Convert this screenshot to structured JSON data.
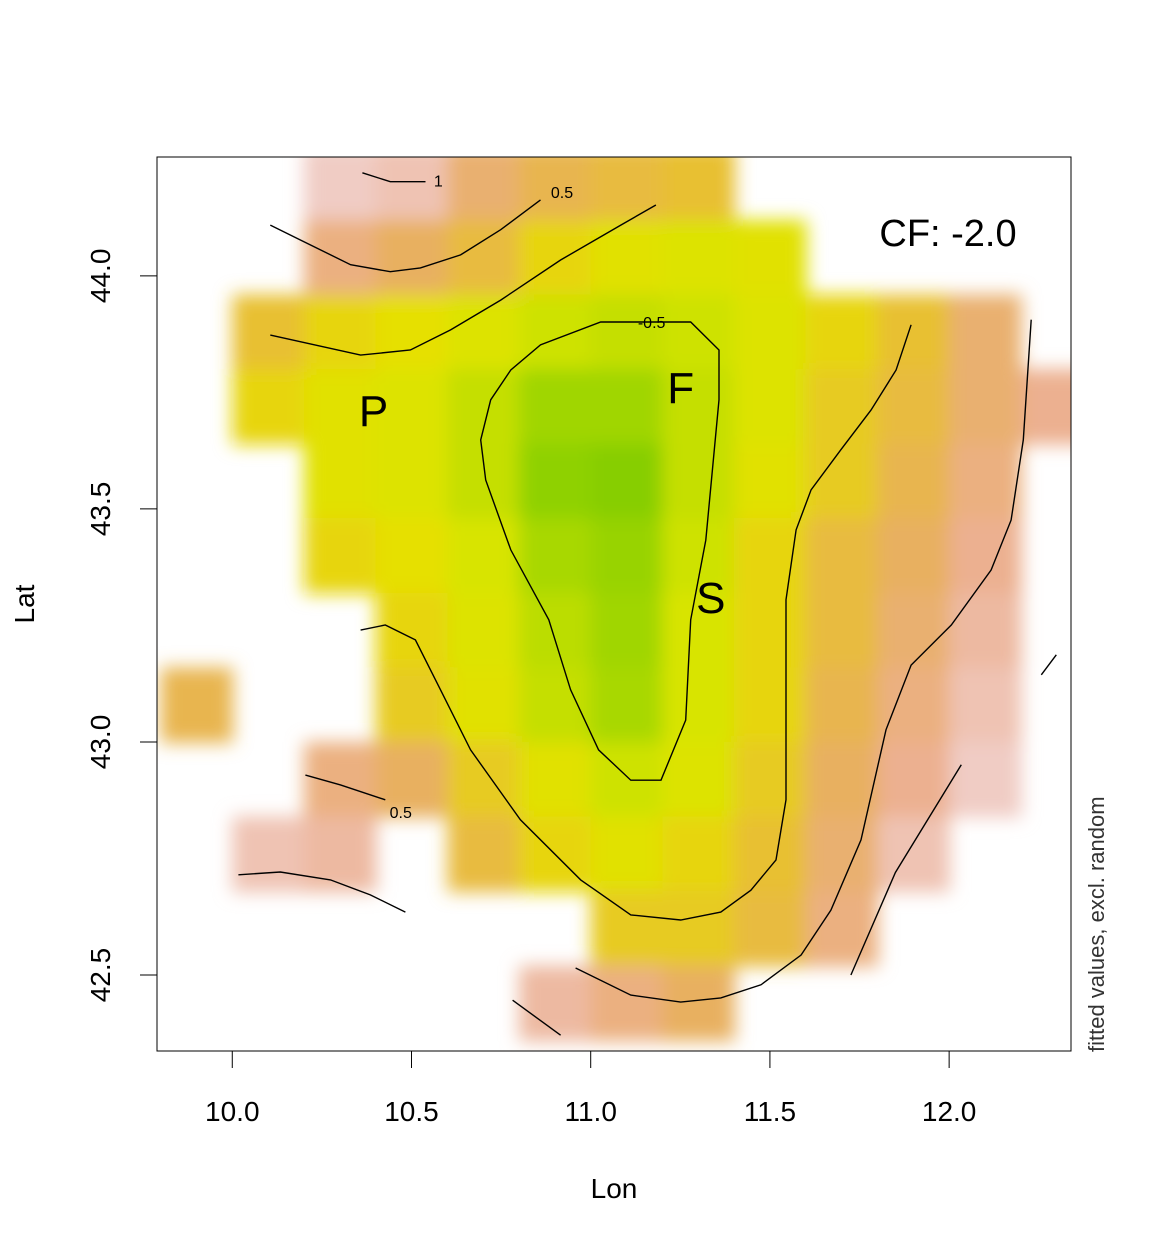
{
  "chart_data": {
    "type": "heatmap",
    "xlabel": "Lon",
    "ylabel": "Lat",
    "xlim": [
      9.79,
      12.34
    ],
    "ylim": [
      42.337,
      44.255
    ],
    "xticks": [
      10.0,
      10.5,
      11.0,
      11.5,
      12.0
    ],
    "xtick_labels": [
      "10.0",
      "10.5",
      "11.0",
      "11.5",
      "12.0"
    ],
    "yticks": [
      42.5,
      43.0,
      43.5,
      44.0
    ],
    "ytick_labels": [
      "42.5",
      "43.0",
      "43.5",
      "44.0"
    ],
    "grid": false,
    "corner_text": "CF: -2.0",
    "side_text": "fitted values, excl. random",
    "colors": {
      "low": "#7fcc00",
      "mid": "#e6e000",
      "high": "#f0ccc4"
    },
    "heatmap": {
      "lon": [
        9.9,
        10.1,
        10.3,
        10.5,
        10.7,
        10.9,
        11.1,
        11.3,
        11.5,
        11.7,
        11.9,
        12.1,
        12.3
      ],
      "lat": [
        44.2,
        44.04,
        43.88,
        43.72,
        43.56,
        43.4,
        43.24,
        43.08,
        42.92,
        42.76,
        42.6,
        42.44
      ],
      "values": [
        [
          null,
          null,
          1.2,
          1.1,
          0.7,
          0.5,
          0.4,
          0.3,
          null,
          null,
          null,
          null,
          null
        ],
        [
          null,
          null,
          0.8,
          0.6,
          0.4,
          0.1,
          -0.1,
          -0.2,
          -0.1,
          null,
          null,
          null,
          null
        ],
        [
          null,
          0.3,
          0.1,
          0.0,
          -0.2,
          -0.4,
          -0.5,
          -0.4,
          -0.2,
          0.1,
          0.3,
          0.7,
          null
        ],
        [
          null,
          0.1,
          -0.1,
          -0.2,
          -0.5,
          -0.9,
          -0.9,
          -0.5,
          -0.2,
          0.2,
          0.4,
          0.7,
          0.9
        ],
        [
          null,
          null,
          -0.1,
          -0.2,
          -0.5,
          -1.1,
          -1.2,
          -0.5,
          -0.1,
          0.2,
          0.5,
          0.8,
          null
        ],
        [
          null,
          null,
          0.1,
          0.0,
          -0.3,
          -0.8,
          -1.0,
          -0.4,
          0.1,
          0.4,
          0.6,
          0.9,
          null
        ],
        [
          null,
          null,
          null,
          0.1,
          -0.2,
          -0.6,
          -0.9,
          -0.3,
          0.1,
          0.4,
          0.7,
          1.0,
          null
        ],
        [
          0.5,
          null,
          null,
          0.2,
          -0.1,
          -0.5,
          -0.8,
          -0.3,
          0.1,
          0.5,
          0.8,
          1.1,
          null
        ],
        [
          null,
          null,
          0.8,
          0.6,
          0.2,
          -0.1,
          -0.4,
          -0.2,
          0.2,
          0.6,
          0.9,
          1.2,
          null
        ],
        [
          null,
          1.1,
          1.0,
          null,
          0.4,
          0.1,
          -0.1,
          0.1,
          0.3,
          0.7,
          1.1,
          null,
          null
        ],
        [
          null,
          null,
          null,
          null,
          null,
          null,
          0.2,
          0.2,
          0.4,
          0.8,
          null,
          null,
          null
        ],
        [
          null,
          null,
          null,
          null,
          null,
          1.0,
          0.8,
          0.6,
          null,
          null,
          null,
          null,
          null
        ]
      ]
    },
    "contours": [
      {
        "level": "-0.5",
        "label": "-0.5",
        "label_at": [
          11.17,
          43.901
        ],
        "points": [
          [
            11.126,
            43.901
          ],
          [
            11.279,
            43.901
          ],
          [
            11.358,
            43.841
          ],
          [
            11.358,
            43.734
          ],
          [
            11.321,
            43.433
          ],
          [
            11.279,
            43.262
          ],
          [
            11.265,
            43.047
          ],
          [
            11.196,
            42.918
          ],
          [
            11.112,
            42.918
          ],
          [
            11.022,
            42.983
          ],
          [
            10.944,
            43.112
          ],
          [
            10.883,
            43.262
          ],
          [
            10.777,
            43.412
          ],
          [
            10.707,
            43.562
          ],
          [
            10.693,
            43.648
          ],
          [
            10.721,
            43.734
          ],
          [
            10.777,
            43.798
          ],
          [
            10.86,
            43.852
          ],
          [
            11.028,
            43.901
          ],
          [
            11.126,
            43.901
          ]
        ]
      },
      {
        "level": "0",
        "label": "",
        "points": [
          [
            10.106,
            43.873
          ],
          [
            10.358,
            43.83
          ],
          [
            10.497,
            43.841
          ],
          [
            10.609,
            43.884
          ],
          [
            10.749,
            43.948
          ],
          [
            10.916,
            44.034
          ],
          [
            11.084,
            44.109
          ],
          [
            11.182,
            44.152
          ]
        ]
      },
      {
        "level": "0",
        "label": "",
        "points": [
          [
            10.358,
            43.24
          ],
          [
            10.427,
            43.251
          ],
          [
            10.511,
            43.219
          ],
          [
            10.581,
            43.112
          ],
          [
            10.665,
            42.983
          ],
          [
            10.804,
            42.833
          ],
          [
            10.972,
            42.704
          ],
          [
            11.112,
            42.629
          ],
          [
            11.251,
            42.618
          ],
          [
            11.363,
            42.635
          ],
          [
            11.447,
            42.682
          ],
          [
            11.517,
            42.747
          ],
          [
            11.545,
            42.876
          ],
          [
            11.545,
            43.09
          ],
          [
            11.545,
            43.305
          ],
          [
            11.573,
            43.455
          ],
          [
            11.615,
            43.541
          ],
          [
            11.698,
            43.627
          ],
          [
            11.782,
            43.712
          ],
          [
            11.852,
            43.798
          ],
          [
            11.894,
            43.895
          ]
        ]
      },
      {
        "level": "0.5",
        "label": "0.5",
        "label_at": [
          10.92,
          44.18
        ],
        "points": [
          [
            10.106,
            44.109
          ],
          [
            10.19,
            44.077
          ],
          [
            10.33,
            44.024
          ],
          [
            10.441,
            44.009
          ],
          [
            10.525,
            44.017
          ],
          [
            10.637,
            44.045
          ],
          [
            10.749,
            44.099
          ],
          [
            10.86,
            44.163
          ]
        ]
      },
      {
        "level": "0.5",
        "label": "",
        "points": [
          [
            10.958,
            42.515
          ],
          [
            11.112,
            42.457
          ],
          [
            11.251,
            42.442
          ],
          [
            11.363,
            42.451
          ],
          [
            11.475,
            42.479
          ],
          [
            11.587,
            42.543
          ],
          [
            11.67,
            42.639
          ],
          [
            11.754,
            42.79
          ],
          [
            11.824,
            43.026
          ],
          [
            11.894,
            43.165
          ],
          [
            12.006,
            43.251
          ],
          [
            12.117,
            43.369
          ],
          [
            12.173,
            43.476
          ],
          [
            12.207,
            43.648
          ],
          [
            12.229,
            43.906
          ]
        ]
      },
      {
        "level": "0.5",
        "label": "0.5",
        "label_at": [
          10.47,
          42.85
        ],
        "points": [
          [
            10.204,
            42.929
          ],
          [
            10.302,
            42.908
          ],
          [
            10.427,
            42.876
          ]
        ]
      },
      {
        "level": "1",
        "label": "1",
        "label_at": [
          10.575,
          44.205
        ],
        "points": [
          [
            10.363,
            44.221
          ],
          [
            10.441,
            44.202
          ],
          [
            10.539,
            44.202
          ]
        ]
      },
      {
        "level": "1",
        "label": "",
        "points": [
          [
            10.017,
            42.715
          ],
          [
            10.134,
            42.721
          ],
          [
            10.274,
            42.704
          ],
          [
            10.385,
            42.672
          ],
          [
            10.483,
            42.635
          ]
        ]
      },
      {
        "level": "1",
        "label": "",
        "points": [
          [
            11.726,
            42.5
          ],
          [
            11.85,
            42.72
          ],
          [
            12.034,
            42.951
          ]
        ]
      },
      {
        "level": "1",
        "label": "",
        "points": [
          [
            12.257,
            43.144
          ],
          [
            12.299,
            43.187
          ]
        ]
      },
      {
        "level": "1",
        "label": "",
        "points": [
          [
            10.782,
            42.446
          ],
          [
            10.916,
            42.371
          ]
        ]
      }
    ],
    "annotations": [
      {
        "text": "P",
        "lon": 10.394,
        "lat": 43.712
      },
      {
        "text": "F",
        "lon": 11.251,
        "lat": 43.762
      },
      {
        "text": "S",
        "lon": 11.335,
        "lat": 43.311
      }
    ]
  }
}
